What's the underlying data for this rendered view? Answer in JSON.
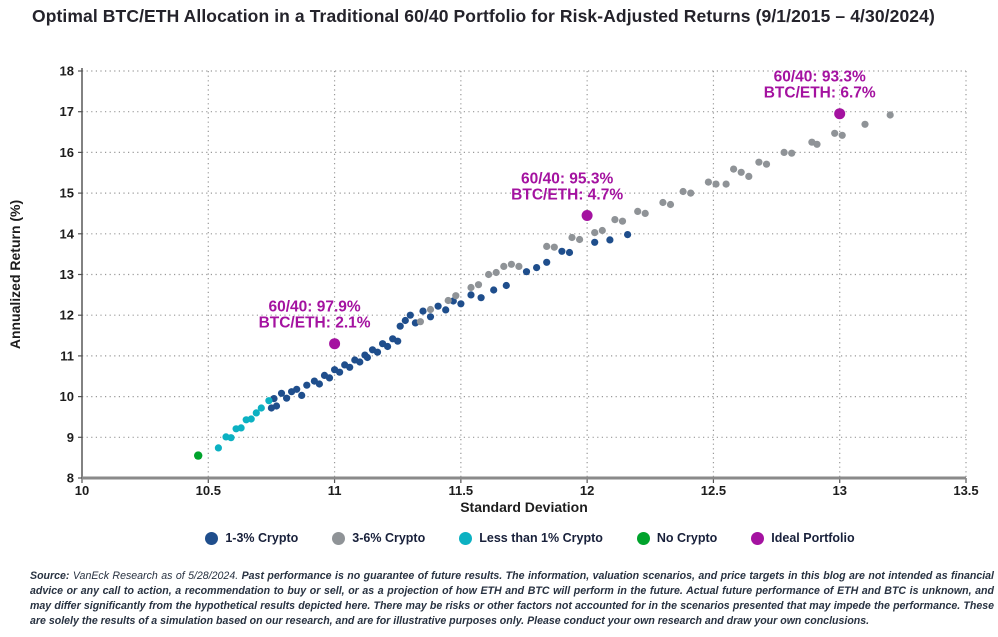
{
  "header": {
    "title": "Optimal BTC/ETH Allocation in a Traditional 60/40 Portfolio for Risk-Adjusted Returns (9/1/2015 – 4/30/2024)"
  },
  "chart_data": {
    "type": "scatter",
    "title": "Optimal BTC/ETH Allocation in a Traditional 60/40 Portfolio for Risk-Adjusted Returns (9/1/2015 – 4/30/2024)",
    "xlabel": "Standard Deviation",
    "ylabel": "Annualized Return (%)",
    "xlim": [
      10,
      13.5
    ],
    "ylim": [
      8,
      18
    ],
    "x_ticks": [
      10,
      10.5,
      11,
      11.5,
      12,
      12.5,
      13,
      13.5
    ],
    "y_ticks": [
      8,
      9,
      10,
      11,
      12,
      13,
      14,
      15,
      16,
      17,
      18
    ],
    "grid": "dotted",
    "legend_position": "bottom",
    "series": [
      {
        "name": "1-3% Crypto",
        "color": "#1f4e8c",
        "role": "default",
        "points": [
          [
            10.75,
            9.72
          ],
          [
            10.77,
            9.77
          ],
          [
            10.76,
            9.95
          ],
          [
            10.79,
            10.08
          ],
          [
            10.81,
            9.96
          ],
          [
            10.83,
            10.12
          ],
          [
            10.85,
            10.18
          ],
          [
            10.87,
            10.03
          ],
          [
            10.89,
            10.28
          ],
          [
            10.92,
            10.38
          ],
          [
            10.94,
            10.31
          ],
          [
            10.96,
            10.52
          ],
          [
            10.98,
            10.46
          ],
          [
            11.0,
            10.66
          ],
          [
            11.02,
            10.6
          ],
          [
            11.04,
            10.78
          ],
          [
            11.06,
            10.72
          ],
          [
            11.08,
            10.9
          ],
          [
            11.1,
            10.85
          ],
          [
            11.12,
            11.02
          ],
          [
            11.13,
            10.96
          ],
          [
            11.15,
            11.15
          ],
          [
            11.17,
            11.09
          ],
          [
            11.19,
            11.3
          ],
          [
            11.21,
            11.23
          ],
          [
            11.23,
            11.42
          ],
          [
            11.25,
            11.36
          ],
          [
            11.26,
            11.73
          ],
          [
            11.28,
            11.87
          ],
          [
            11.3,
            12.0
          ],
          [
            11.32,
            11.81
          ],
          [
            11.35,
            12.1
          ],
          [
            11.38,
            11.96
          ],
          [
            11.41,
            12.22
          ],
          [
            11.44,
            12.13
          ],
          [
            11.47,
            12.35
          ],
          [
            11.5,
            12.28
          ],
          [
            11.54,
            12.5
          ],
          [
            11.58,
            12.43
          ],
          [
            11.63,
            12.62
          ],
          [
            11.68,
            12.73
          ],
          [
            11.76,
            13.07
          ],
          [
            11.8,
            13.17
          ],
          [
            11.84,
            13.3
          ],
          [
            11.9,
            13.57
          ],
          [
            11.93,
            13.54
          ],
          [
            12.03,
            13.79
          ],
          [
            12.09,
            13.85
          ],
          [
            12.16,
            13.98
          ]
        ]
      },
      {
        "name": "3-6% Crypto",
        "color": "#8f9397",
        "role": "default",
        "points": [
          [
            11.34,
            11.84
          ],
          [
            11.38,
            12.14
          ],
          [
            11.45,
            12.36
          ],
          [
            11.48,
            12.48
          ],
          [
            11.54,
            12.68
          ],
          [
            11.57,
            12.75
          ],
          [
            11.61,
            13.0
          ],
          [
            11.64,
            13.05
          ],
          [
            11.67,
            13.2
          ],
          [
            11.7,
            13.25
          ],
          [
            11.73,
            13.2
          ],
          [
            11.84,
            13.69
          ],
          [
            11.87,
            13.67
          ],
          [
            11.94,
            13.91
          ],
          [
            11.97,
            13.86
          ],
          [
            12.03,
            14.03
          ],
          [
            12.06,
            14.08
          ],
          [
            12.11,
            14.35
          ],
          [
            12.14,
            14.31
          ],
          [
            12.2,
            14.55
          ],
          [
            12.23,
            14.5
          ],
          [
            12.3,
            14.77
          ],
          [
            12.33,
            14.72
          ],
          [
            12.38,
            15.04
          ],
          [
            12.41,
            15.0
          ],
          [
            12.48,
            15.27
          ],
          [
            12.51,
            15.22
          ],
          [
            12.55,
            15.22
          ],
          [
            12.58,
            15.59
          ],
          [
            12.61,
            15.51
          ],
          [
            12.64,
            15.41
          ],
          [
            12.68,
            15.76
          ],
          [
            12.71,
            15.71
          ],
          [
            12.78,
            16.0
          ],
          [
            12.81,
            15.98
          ],
          [
            12.89,
            16.25
          ],
          [
            12.91,
            16.2
          ],
          [
            12.98,
            16.47
          ],
          [
            13.01,
            16.42
          ],
          [
            13.1,
            16.69
          ],
          [
            13.2,
            16.92
          ]
        ]
      },
      {
        "name": "Less than 1% Crypto",
        "color": "#0cb1c2",
        "role": "default",
        "points": [
          [
            10.54,
            8.74
          ],
          [
            10.57,
            9.01
          ],
          [
            10.59,
            8.99
          ],
          [
            10.61,
            9.21
          ],
          [
            10.63,
            9.23
          ],
          [
            10.65,
            9.43
          ],
          [
            10.67,
            9.45
          ],
          [
            10.69,
            9.6
          ],
          [
            10.71,
            9.72
          ],
          [
            10.74,
            9.9
          ]
        ]
      },
      {
        "name": "No Crypto",
        "color": "#00a32c",
        "role": "no-crypto",
        "points": [
          [
            10.46,
            8.55
          ]
        ]
      },
      {
        "name": "Ideal Portfolio",
        "color": "#a412a0",
        "role": "ideal",
        "points": [
          [
            11.0,
            11.3
          ],
          [
            12.0,
            14.45
          ],
          [
            13.0,
            16.95
          ]
        ]
      }
    ],
    "annotations": [
      {
        "line1": "60/40: 97.9%",
        "line2": "BTC/ETH: 2.1%",
        "x": 11.0,
        "y": 11.3,
        "color": "#a412a0"
      },
      {
        "line1": "60/40: 95.3%",
        "line2": "BTC/ETH: 4.7%",
        "x": 12.0,
        "y": 14.45,
        "color": "#a412a0"
      },
      {
        "line1": "60/40: 93.3%",
        "line2": "BTC/ETH: 6.7%",
        "x": 13.0,
        "y": 16.95,
        "color": "#a412a0"
      }
    ]
  },
  "footer": {
    "source_label": "Source:",
    "source_attribution": " VanEck Research as of 5/28/2024. ",
    "source_body": "Past performance is no guarantee of future results. The information, valuation scenarios, and price targets in this blog are not intended as financial advice or any call to action, a recommendation to buy or sell, or as a projection of how ETH and BTC will perform in the future. Actual future performance of ETH and BTC is unknown, and may differ significantly from the hypothetical results depicted here. There may be risks or other factors not accounted for in the scenarios presented that may impede the performance. These are solely the results of a simulation based on our research, and are for illustrative purposes only. Please conduct your own research and draw your own conclusions."
  }
}
